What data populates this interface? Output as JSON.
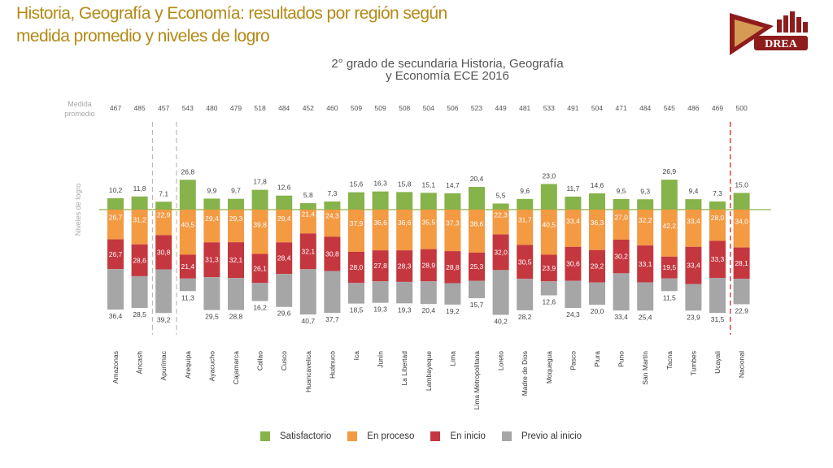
{
  "header": {
    "title_line1": "Historia, Geografía y Economía: resultados por región según",
    "title_line2": "medida promedio y niveles de  logro",
    "subtitle_line1": "2° grado de secundaria  Historia, Geografía",
    "subtitle_line2": "y Economía  ECE 2016",
    "logo_text": "DREA"
  },
  "colors": {
    "satisfactorio": "#86b34a",
    "en_proceso": "#f39a43",
    "en_inicio": "#c5373f",
    "previo_al_inicio": "#a6a6a6",
    "title": "#b48a16",
    "logo": "#8f1c1c"
  },
  "chart_data": {
    "type": "bar",
    "stacked": true,
    "diverging": true,
    "title": "2° grado de secundaria  Historia, Geografía y Economía  ECE 2016",
    "row_label_top": [
      "Medida",
      "promedio"
    ],
    "ylabel": "Niveles de logro",
    "categories": [
      "Amazonas",
      "Áncash",
      "Apurímac",
      "Arequipa",
      "Ayacucho",
      "Cajamarca",
      "Callao",
      "Cusco",
      "Huancavelica",
      "Huánuco",
      "Ica",
      "Junín",
      "La Libertad",
      "Lambayeque",
      "Lima",
      "Lima Metropolitana",
      "Loreto",
      "Madre de Dios",
      "Moquegua",
      "Pasco",
      "Piura",
      "Puno",
      "San Martín",
      "Tacna",
      "Tumbes",
      "Ucayali",
      "Nacional"
    ],
    "medida_promedio": [
      "467",
      "485",
      "457",
      "543",
      "480",
      "479",
      "518",
      "484",
      "452",
      "460",
      "509",
      "509",
      "508",
      "504",
      "506",
      "523",
      "449",
      "481",
      "533",
      "491",
      "504",
      "471",
      "484",
      "545",
      "486",
      "469",
      "500"
    ],
    "series": [
      {
        "name": "Satisfactorio",
        "values": [
          10.2,
          11.8,
          7.1,
          26.8,
          9.9,
          9.7,
          17.8,
          12.6,
          5.8,
          7.3,
          15.6,
          16.3,
          15.8,
          15.1,
          14.7,
          20.4,
          5.5,
          9.6,
          23.0,
          11.7,
          14.6,
          9.5,
          9.3,
          26.9,
          9.4,
          7.3,
          15.0
        ],
        "labels": [
          "10,2",
          "11,8",
          "7,1",
          "26,8",
          "9,9",
          "9,7",
          "17,8",
          "12,6",
          "5,8",
          "7,3",
          "15,6",
          "16,3",
          "15,8",
          "15,1",
          "14,7",
          "20,4",
          "5,5",
          "9,6",
          "23,0",
          "11,7",
          "14,6",
          "9,5",
          "9,3",
          "26,9",
          "9,4",
          "7,3",
          "15,0"
        ]
      },
      {
        "name": "En proceso",
        "values": [
          26.7,
          31.2,
          22.9,
          40.5,
          29.4,
          29.3,
          39.8,
          29.4,
          21.4,
          24.3,
          37.9,
          36.6,
          36.6,
          35.5,
          37.3,
          38.6,
          22.3,
          31.7,
          40.5,
          33.4,
          36.3,
          27.0,
          32.2,
          42.2,
          33.4,
          28.0,
          34.0
        ],
        "labels": [
          "26,7",
          "31,2",
          "22,9",
          "40,5",
          "29,4",
          "29,3",
          "39,8",
          "29,4",
          "21,4",
          "24,3",
          "37,9",
          "36,6",
          "36,6",
          "35,5",
          "37,3",
          "38,6",
          "22,3",
          "31,7",
          "40,5",
          "33,4",
          "36,3",
          "27,0",
          "32,2",
          "42,2",
          "33,4",
          "28,0",
          "34,0"
        ]
      },
      {
        "name": "En inicio",
        "values": [
          26.7,
          28.6,
          30.8,
          21.4,
          31.3,
          32.1,
          26.1,
          28.4,
          32.1,
          30.8,
          28.0,
          27.8,
          28.3,
          28.9,
          28.8,
          25.3,
          32.0,
          30.5,
          23.9,
          30.6,
          29.2,
          30.2,
          33.1,
          19.5,
          33.4,
          33.3,
          28.1
        ],
        "labels": [
          "26,7",
          "28,6",
          "30,8",
          "21,4",
          "31,3",
          "32,1",
          "26,1",
          "28,4",
          "32,1",
          "30,8",
          "28,0",
          "27,8",
          "28,3",
          "28,9",
          "28,8",
          "25,3",
          "32,0",
          "30,5",
          "23,9",
          "30,6",
          "29,2",
          "30,2",
          "33,1",
          "19,5",
          "33,4",
          "33,3",
          "28,1"
        ]
      },
      {
        "name": "Previo al inicio",
        "values": [
          36.4,
          28.5,
          39.2,
          11.3,
          29.5,
          28.8,
          16.2,
          29.6,
          40.7,
          37.7,
          18.5,
          19.3,
          19.3,
          20.4,
          19.2,
          15.7,
          40.2,
          28.2,
          12.6,
          24.3,
          20.0,
          33.4,
          25.4,
          11.5,
          23.9,
          31.5,
          22.9
        ],
        "labels": [
          "36,4",
          "28,5",
          "39,2",
          "11,3",
          "29,5",
          "28,8",
          "16,2",
          "29,6",
          "40,7",
          "37,7",
          "18,5",
          "19,3",
          "19,3",
          "20,4",
          "19,2",
          "15,7",
          "40,2",
          "28,2",
          "12,6",
          "24,3",
          "20,0",
          "33,4",
          "25,4",
          "11,5",
          "23,9",
          "31,5",
          "22,9"
        ]
      }
    ],
    "legend": [
      "Satisfactorio",
      "En proceso",
      "En inicio",
      "Previo al inicio"
    ],
    "legend_position": "bottom",
    "separators_after": [
      "Áncash",
      "Apurímac",
      "Ucayali"
    ]
  }
}
